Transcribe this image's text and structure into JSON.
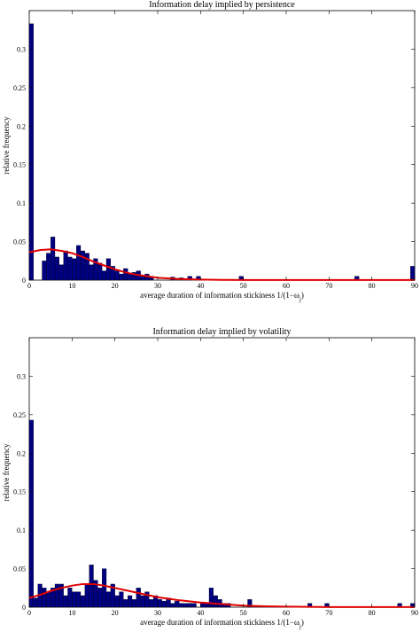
{
  "chart_data": [
    {
      "type": "bar",
      "title": "Information delay implied by persistence",
      "xlabel": "average duration of information stickiness 1/(1−ω",
      "xlabel_sub": "j",
      "xlabel_close": ")",
      "ylabel": "relative frequency",
      "xlim": [
        0,
        90
      ],
      "ylim": [
        0,
        0.35
      ],
      "xticks": [
        "0",
        "10",
        "20",
        "30",
        "40",
        "50",
        "60",
        "70",
        "80",
        "90"
      ],
      "yticks": [
        "0",
        "0.05",
        "0.1",
        "0.15",
        "0.2",
        "0.25",
        "0.3"
      ],
      "bin_width": 1,
      "bars": [
        {
          "x": 0.5,
          "y": 0.333
        },
        {
          "x": 3.5,
          "y": 0.025
        },
        {
          "x": 4.5,
          "y": 0.035
        },
        {
          "x": 5.5,
          "y": 0.056
        },
        {
          "x": 6.5,
          "y": 0.03
        },
        {
          "x": 7.5,
          "y": 0.02
        },
        {
          "x": 8.5,
          "y": 0.038
        },
        {
          "x": 9.5,
          "y": 0.03
        },
        {
          "x": 10.5,
          "y": 0.028
        },
        {
          "x": 11.5,
          "y": 0.045
        },
        {
          "x": 12.5,
          "y": 0.038
        },
        {
          "x": 13.5,
          "y": 0.035
        },
        {
          "x": 14.5,
          "y": 0.02
        },
        {
          "x": 15.5,
          "y": 0.028
        },
        {
          "x": 16.5,
          "y": 0.022
        },
        {
          "x": 17.5,
          "y": 0.012
        },
        {
          "x": 18.5,
          "y": 0.028
        },
        {
          "x": 19.5,
          "y": 0.018
        },
        {
          "x": 20.5,
          "y": 0.012
        },
        {
          "x": 21.5,
          "y": 0.008
        },
        {
          "x": 22.5,
          "y": 0.015
        },
        {
          "x": 23.5,
          "y": 0.008
        },
        {
          "x": 24.5,
          "y": 0.01
        },
        {
          "x": 25.5,
          "y": 0.012
        },
        {
          "x": 26.5,
          "y": 0.005
        },
        {
          "x": 27.5,
          "y": 0.008
        },
        {
          "x": 28.5,
          "y": 0.005
        },
        {
          "x": 33.5,
          "y": 0.004
        },
        {
          "x": 35.5,
          "y": 0.003
        },
        {
          "x": 37.5,
          "y": 0.005
        },
        {
          "x": 39.5,
          "y": 0.005
        },
        {
          "x": 49.5,
          "y": 0.005
        },
        {
          "x": 76.5,
          "y": 0.005
        },
        {
          "x": 89.5,
          "y": 0.018
        }
      ],
      "curve": [
        [
          0,
          0.036
        ],
        [
          2.5,
          0.039
        ],
        [
          5,
          0.04
        ],
        [
          7.5,
          0.038
        ],
        [
          10,
          0.035
        ],
        [
          12.5,
          0.03
        ],
        [
          15,
          0.024
        ],
        [
          17.5,
          0.019
        ],
        [
          20,
          0.014
        ],
        [
          22.5,
          0.01
        ],
        [
          25,
          0.007
        ],
        [
          27.5,
          0.005
        ],
        [
          30,
          0.003
        ],
        [
          35,
          0.0015
        ],
        [
          40,
          0.0007
        ],
        [
          45,
          0.0003
        ],
        [
          50,
          0.0002
        ],
        [
          60,
          0.0001
        ],
        [
          70,
          0.0001
        ],
        [
          80,
          0.0001
        ],
        [
          90,
          0.0001
        ]
      ],
      "bar_color": "#000080",
      "curve_color": "#e00000"
    },
    {
      "type": "bar",
      "title": "Information delay implied by volatility",
      "xlabel": "average duration of information stickiness 1/(1−ω",
      "xlabel_sub": "j",
      "xlabel_close": ")",
      "ylabel": "relative frequency",
      "xlim": [
        0,
        90
      ],
      "ylim": [
        0,
        0.35
      ],
      "xticks": [
        "0",
        "10",
        "20",
        "30",
        "40",
        "50",
        "60",
        "70",
        "80",
        "90"
      ],
      "yticks": [
        "0",
        "0.05",
        "0.1",
        "0.15",
        "0.2",
        "0.25",
        "0.3"
      ],
      "bin_width": 1,
      "bars": [
        {
          "x": 0.5,
          "y": 0.243
        },
        {
          "x": 1.5,
          "y": 0.012
        },
        {
          "x": 2.5,
          "y": 0.03
        },
        {
          "x": 3.5,
          "y": 0.025
        },
        {
          "x": 4.5,
          "y": 0.02
        },
        {
          "x": 5.5,
          "y": 0.025
        },
        {
          "x": 6.5,
          "y": 0.03
        },
        {
          "x": 7.5,
          "y": 0.03
        },
        {
          "x": 8.5,
          "y": 0.015
        },
        {
          "x": 9.5,
          "y": 0.025
        },
        {
          "x": 10.5,
          "y": 0.02
        },
        {
          "x": 11.5,
          "y": 0.02
        },
        {
          "x": 12.5,
          "y": 0.015
        },
        {
          "x": 13.5,
          "y": 0.03
        },
        {
          "x": 14.5,
          "y": 0.055
        },
        {
          "x": 15.5,
          "y": 0.035
        },
        {
          "x": 16.5,
          "y": 0.025
        },
        {
          "x": 17.5,
          "y": 0.05
        },
        {
          "x": 18.5,
          "y": 0.02
        },
        {
          "x": 19.5,
          "y": 0.03
        },
        {
          "x": 20.5,
          "y": 0.015
        },
        {
          "x": 21.5,
          "y": 0.02
        },
        {
          "x": 22.5,
          "y": 0.01
        },
        {
          "x": 23.5,
          "y": 0.015
        },
        {
          "x": 24.5,
          "y": 0.01
        },
        {
          "x": 25.5,
          "y": 0.025
        },
        {
          "x": 26.5,
          "y": 0.015
        },
        {
          "x": 27.5,
          "y": 0.02
        },
        {
          "x": 28.5,
          "y": 0.01
        },
        {
          "x": 29.5,
          "y": 0.015
        },
        {
          "x": 30.5,
          "y": 0.01
        },
        {
          "x": 31.5,
          "y": 0.008
        },
        {
          "x": 32.5,
          "y": 0.012
        },
        {
          "x": 33.5,
          "y": 0.005
        },
        {
          "x": 34.5,
          "y": 0.008
        },
        {
          "x": 35.5,
          "y": 0.005
        },
        {
          "x": 36.5,
          "y": 0.005
        },
        {
          "x": 37.5,
          "y": 0.005
        },
        {
          "x": 38.5,
          "y": 0.005
        },
        {
          "x": 40.5,
          "y": 0.005
        },
        {
          "x": 41.5,
          "y": 0.005
        },
        {
          "x": 42.5,
          "y": 0.025
        },
        {
          "x": 43.5,
          "y": 0.015
        },
        {
          "x": 44.5,
          "y": 0.01
        },
        {
          "x": 45.5,
          "y": 0.005
        },
        {
          "x": 46.5,
          "y": 0.005
        },
        {
          "x": 51.5,
          "y": 0.01
        },
        {
          "x": 65.5,
          "y": 0.005
        },
        {
          "x": 69.5,
          "y": 0.005
        },
        {
          "x": 86.5,
          "y": 0.005
        },
        {
          "x": 89.5,
          "y": 0.005
        }
      ],
      "curve": [
        [
          0,
          0.012
        ],
        [
          2.5,
          0.016
        ],
        [
          5,
          0.021
        ],
        [
          7.5,
          0.025
        ],
        [
          10,
          0.028
        ],
        [
          12.5,
          0.03
        ],
        [
          15,
          0.03
        ],
        [
          17.5,
          0.028
        ],
        [
          20,
          0.025
        ],
        [
          22.5,
          0.022
        ],
        [
          25,
          0.019
        ],
        [
          27.5,
          0.016
        ],
        [
          30,
          0.013
        ],
        [
          32.5,
          0.011
        ],
        [
          35,
          0.009
        ],
        [
          40,
          0.006
        ],
        [
          45,
          0.004
        ],
        [
          50,
          0.002
        ],
        [
          55,
          0.0012
        ],
        [
          60,
          0.0007
        ],
        [
          65,
          0.0004
        ],
        [
          70,
          0.0002
        ],
        [
          80,
          0.0001
        ],
        [
          90,
          0.0001
        ]
      ],
      "bar_color": "#000080",
      "curve_color": "#e00000"
    }
  ]
}
